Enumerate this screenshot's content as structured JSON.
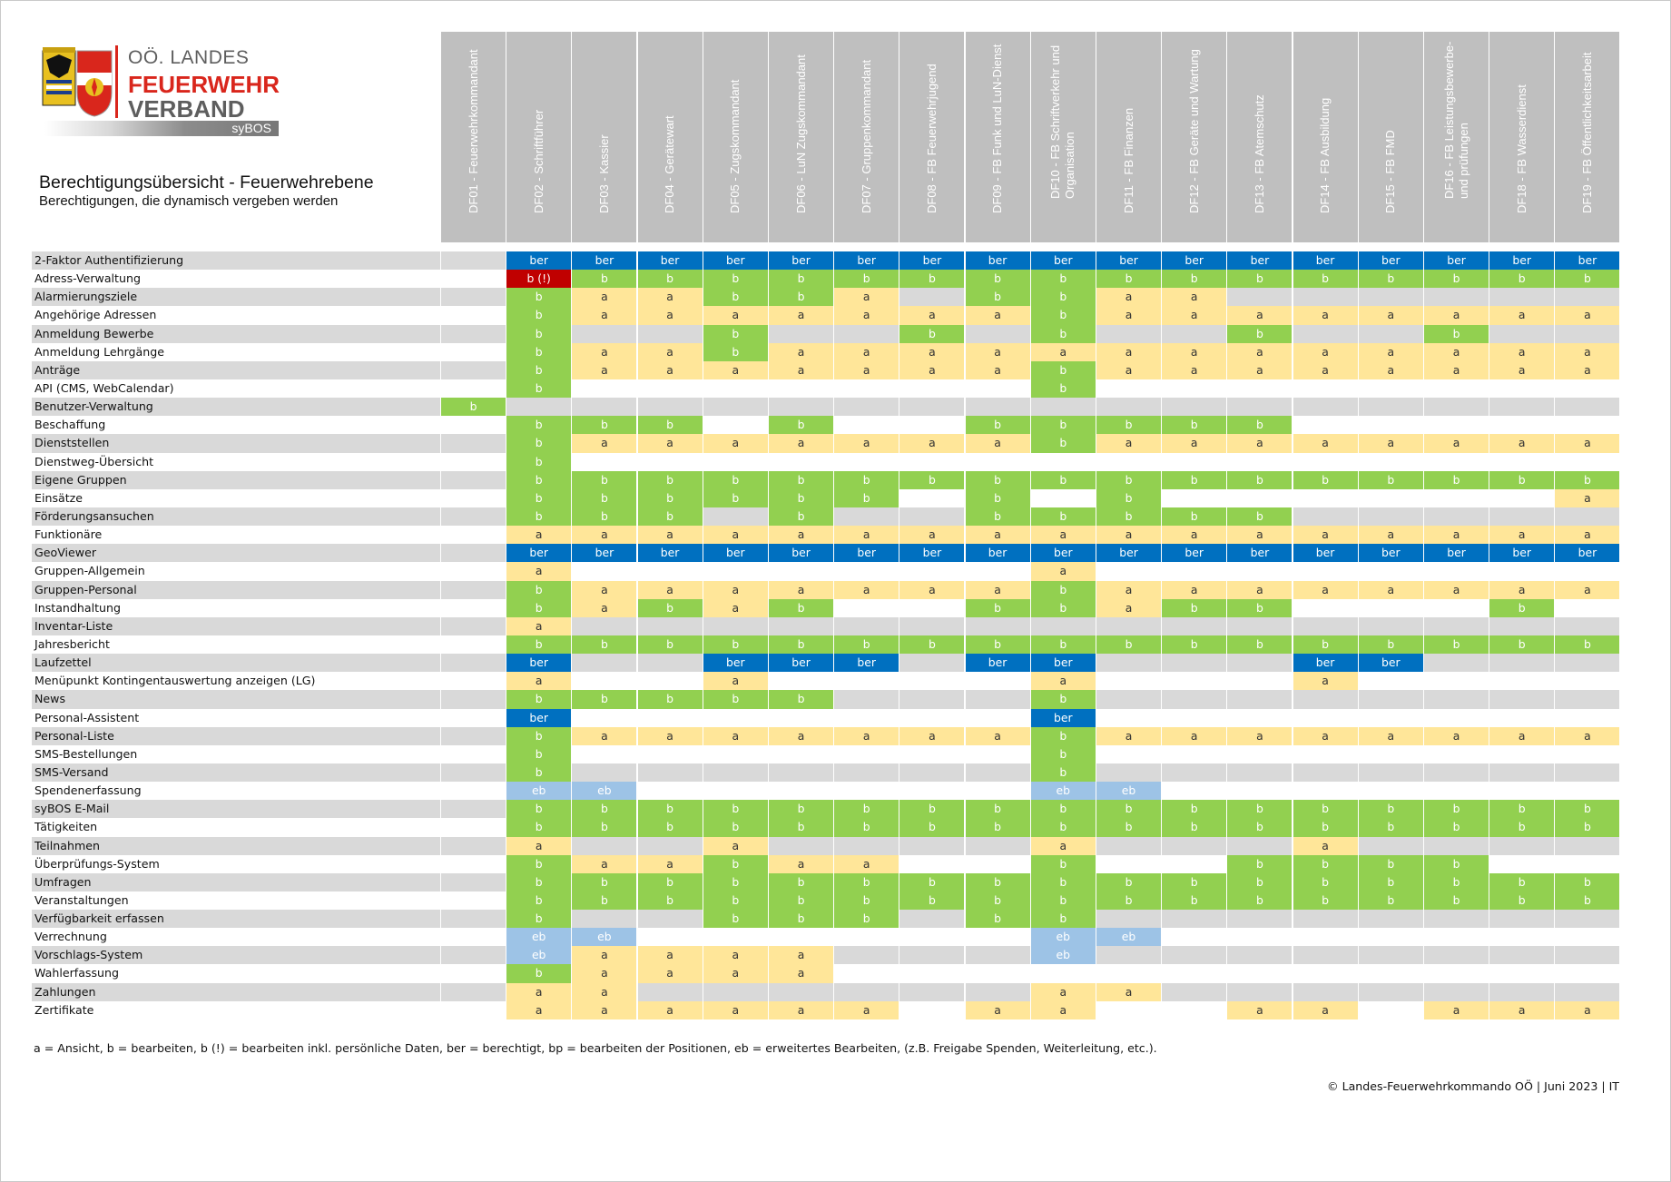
{
  "logo": {
    "line1": "OÖ. LANDES",
    "line2": "FEUERWEHR",
    "line3": "VERBAND",
    "badge": "syBOS",
    "colors": {
      "red": "#d9261c",
      "gray": "#5e5e5e"
    }
  },
  "title": "Berechtigungsübersicht - Feuerwehrebene",
  "subtitle": "Berechtigungen, die dynamisch vergeben werden",
  "columns": [
    "DF01 - Feuerwehrkommandant",
    "DF02 - Schriftführer",
    "DF03 - Kassier",
    "DF04 - Gerätewart",
    "DF05 - Zugskommandant",
    "DF06 - LuN Zugskommandant",
    "DF07 - Gruppenkommandant",
    "DF08 - FB Feuerwehrjugend",
    "DF09 - FB Funk und LuN-Dienst",
    "DF10 - FB Schriftverkehr und Organisation",
    "DF11 - FB Finanzen",
    "DF12 - FB Geräte und Wartung",
    "DF13 - FB Atemschutz",
    "DF14 - FB Ausbildung",
    "DF15 - FB FMD",
    "DF16 - FB Leistungsbewerbe- und prüfungen",
    "DF18 - FB Wasserdienst",
    "DF19 - FB Öffentlichkeitsarbeit"
  ],
  "cell_colors": {
    "ber": "#0070c0",
    "b": "#92d050",
    "a": "#ffe699",
    "eb": "#9dc3e6",
    "b (!)": "#c00000",
    "shade": "#d9d9d9"
  },
  "rows": [
    {
      "label": "2-Faktor Authentifizierung",
      "cells": [
        "",
        "ber",
        "ber",
        "ber",
        "ber",
        "ber",
        "ber",
        "ber",
        "ber",
        "ber",
        "ber",
        "ber",
        "ber",
        "ber",
        "ber",
        "ber",
        "ber",
        "ber"
      ]
    },
    {
      "label": "Adress-Verwaltung",
      "cells": [
        "",
        "b (!)",
        "b",
        "b",
        "b",
        "b",
        "b",
        "b",
        "b",
        "b",
        "b",
        "b",
        "b",
        "b",
        "b",
        "b",
        "b",
        "b"
      ]
    },
    {
      "label": "Alarmierungsziele",
      "cells": [
        "",
        "b",
        "a",
        "a",
        "b",
        "b",
        "a",
        "",
        "b",
        "b",
        "a",
        "a",
        "",
        "",
        "",
        "",
        "",
        ""
      ]
    },
    {
      "label": "Angehörige Adressen",
      "cells": [
        "",
        "b",
        "a",
        "a",
        "a",
        "a",
        "a",
        "a",
        "a",
        "b",
        "a",
        "a",
        "a",
        "a",
        "a",
        "a",
        "a",
        "a"
      ]
    },
    {
      "label": "Anmeldung Bewerbe",
      "cells": [
        "",
        "b",
        "",
        "",
        "b",
        "",
        "",
        "b",
        "",
        "b",
        "",
        "",
        "b",
        "",
        "",
        "b",
        "",
        ""
      ]
    },
    {
      "label": "Anmeldung Lehrgänge",
      "cells": [
        "",
        "b",
        "a",
        "a",
        "b",
        "a",
        "a",
        "a",
        "a",
        "a",
        "a",
        "a",
        "a",
        "a",
        "a",
        "a",
        "a",
        "a"
      ]
    },
    {
      "label": "Anträge",
      "cells": [
        "",
        "b",
        "a",
        "a",
        "a",
        "a",
        "a",
        "a",
        "a",
        "b",
        "a",
        "a",
        "a",
        "a",
        "a",
        "a",
        "a",
        "a"
      ]
    },
    {
      "label": "API (CMS, WebCalendar)",
      "cells": [
        "",
        "b",
        "",
        "",
        "",
        "",
        "",
        "",
        "",
        "b",
        "",
        "",
        "",
        "",
        "",
        "",
        "",
        ""
      ]
    },
    {
      "label": "Benutzer-Verwaltung",
      "cells": [
        "b",
        "",
        "",
        "",
        "",
        "",
        "",
        "",
        "",
        "",
        "",
        "",
        "",
        "",
        "",
        "",
        "",
        ""
      ]
    },
    {
      "label": "Beschaffung",
      "cells": [
        "",
        "b",
        "b",
        "b",
        "",
        "b",
        "",
        "",
        "b",
        "b",
        "b",
        "b",
        "b",
        "",
        "",
        "",
        "",
        ""
      ]
    },
    {
      "label": "Dienststellen",
      "cells": [
        "",
        "b",
        "a",
        "a",
        "a",
        "a",
        "a",
        "a",
        "a",
        "b",
        "a",
        "a",
        "a",
        "a",
        "a",
        "a",
        "a",
        "a"
      ]
    },
    {
      "label": "Dienstweg-Übersicht",
      "cells": [
        "",
        "b",
        "",
        "",
        "",
        "",
        "",
        "",
        "",
        "",
        "",
        "",
        "",
        "",
        "",
        "",
        "",
        ""
      ]
    },
    {
      "label": "Eigene Gruppen",
      "cells": [
        "",
        "b",
        "b",
        "b",
        "b",
        "b",
        "b",
        "b",
        "b",
        "b",
        "b",
        "b",
        "b",
        "b",
        "b",
        "b",
        "b",
        "b"
      ]
    },
    {
      "label": "Einsätze",
      "cells": [
        "",
        "b",
        "b",
        "b",
        "b",
        "b",
        "b",
        "",
        "b",
        "",
        "b",
        "",
        "",
        "",
        "",
        "",
        "",
        "a"
      ]
    },
    {
      "label": "Förderungsansuchen",
      "cells": [
        "",
        "b",
        "b",
        "b",
        "",
        "b",
        "",
        "",
        "b",
        "b",
        "b",
        "b",
        "b",
        "",
        "",
        "",
        "",
        ""
      ]
    },
    {
      "label": "Funktionäre",
      "cells": [
        "",
        "a",
        "a",
        "a",
        "a",
        "a",
        "a",
        "a",
        "a",
        "a",
        "a",
        "a",
        "a",
        "a",
        "a",
        "a",
        "a",
        "a"
      ]
    },
    {
      "label": "GeoViewer",
      "cells": [
        "",
        "ber",
        "ber",
        "ber",
        "ber",
        "ber",
        "ber",
        "ber",
        "ber",
        "ber",
        "ber",
        "ber",
        "ber",
        "ber",
        "ber",
        "ber",
        "ber",
        "ber"
      ]
    },
    {
      "label": "Gruppen-Allgemein",
      "cells": [
        "",
        "a",
        "",
        "",
        "",
        "",
        "",
        "",
        "",
        "a",
        "",
        "",
        "",
        "",
        "",
        "",
        "",
        ""
      ]
    },
    {
      "label": "Gruppen-Personal",
      "cells": [
        "",
        "b",
        "a",
        "a",
        "a",
        "a",
        "a",
        "a",
        "a",
        "b",
        "a",
        "a",
        "a",
        "a",
        "a",
        "a",
        "a",
        "a"
      ]
    },
    {
      "label": "Instandhaltung",
      "cells": [
        "",
        "b",
        "a",
        "b",
        "a",
        "b",
        "",
        "",
        "b",
        "b",
        "a",
        "b",
        "b",
        "",
        "",
        "",
        "b",
        ""
      ]
    },
    {
      "label": "Inventar-Liste",
      "cells": [
        "",
        "a",
        "",
        "",
        "",
        "",
        "",
        "",
        "",
        "",
        "",
        "",
        "",
        "",
        "",
        "",
        "",
        ""
      ]
    },
    {
      "label": "Jahresbericht",
      "cells": [
        "",
        "b",
        "b",
        "b",
        "b",
        "b",
        "b",
        "b",
        "b",
        "b",
        "b",
        "b",
        "b",
        "b",
        "b",
        "b",
        "b",
        "b"
      ]
    },
    {
      "label": "Laufzettel",
      "cells": [
        "",
        "ber",
        "",
        "",
        "ber",
        "ber",
        "ber",
        "",
        "ber",
        "ber",
        "",
        "",
        "",
        "ber",
        "ber",
        "",
        "",
        ""
      ]
    },
    {
      "label": "Menüpunkt Kontingentauswertung anzeigen (LG)",
      "cells": [
        "",
        "a",
        "",
        "",
        "a",
        "",
        "",
        "",
        "",
        "a",
        "",
        "",
        "",
        "a",
        "",
        "",
        "",
        ""
      ]
    },
    {
      "label": "News",
      "cells": [
        "",
        "b",
        "b",
        "b",
        "b",
        "b",
        "",
        "",
        "",
        "b",
        "",
        "",
        "",
        "",
        "",
        "",
        "",
        ""
      ]
    },
    {
      "label": "Personal-Assistent",
      "cells": [
        "",
        "ber",
        "",
        "",
        "",
        "",
        "",
        "",
        "",
        "ber",
        "",
        "",
        "",
        "",
        "",
        "",
        "",
        ""
      ]
    },
    {
      "label": "Personal-Liste",
      "cells": [
        "",
        "b",
        "a",
        "a",
        "a",
        "a",
        "a",
        "a",
        "a",
        "b",
        "a",
        "a",
        "a",
        "a",
        "a",
        "a",
        "a",
        "a"
      ]
    },
    {
      "label": "SMS-Bestellungen",
      "cells": [
        "",
        "b",
        "",
        "",
        "",
        "",
        "",
        "",
        "",
        "b",
        "",
        "",
        "",
        "",
        "",
        "",
        "",
        ""
      ]
    },
    {
      "label": "SMS-Versand",
      "cells": [
        "",
        "b",
        "",
        "",
        "",
        "",
        "",
        "",
        "",
        "b",
        "",
        "",
        "",
        "",
        "",
        "",
        "",
        ""
      ]
    },
    {
      "label": "Spendenerfassung",
      "cells": [
        "",
        "eb",
        "eb",
        "",
        "",
        "",
        "",
        "",
        "",
        "eb",
        "eb",
        "",
        "",
        "",
        "",
        "",
        "",
        ""
      ]
    },
    {
      "label": "syBOS E-Mail",
      "cells": [
        "",
        "b",
        "b",
        "b",
        "b",
        "b",
        "b",
        "b",
        "b",
        "b",
        "b",
        "b",
        "b",
        "b",
        "b",
        "b",
        "b",
        "b"
      ]
    },
    {
      "label": "Tätigkeiten",
      "cells": [
        "",
        "b",
        "b",
        "b",
        "b",
        "b",
        "b",
        "b",
        "b",
        "b",
        "b",
        "b",
        "b",
        "b",
        "b",
        "b",
        "b",
        "b"
      ]
    },
    {
      "label": "Teilnahmen",
      "cells": [
        "",
        "a",
        "",
        "",
        "a",
        "",
        "",
        "",
        "",
        "a",
        "",
        "",
        "",
        "a",
        "",
        "",
        "",
        ""
      ]
    },
    {
      "label": "Überprüfungs-System",
      "cells": [
        "",
        "b",
        "a",
        "a",
        "b",
        "a",
        "a",
        "",
        "",
        "b",
        "",
        "",
        "b",
        "b",
        "b",
        "b",
        "",
        ""
      ]
    },
    {
      "label": "Umfragen",
      "cells": [
        "",
        "b",
        "b",
        "b",
        "b",
        "b",
        "b",
        "b",
        "b",
        "b",
        "b",
        "b",
        "b",
        "b",
        "b",
        "b",
        "b",
        "b"
      ]
    },
    {
      "label": "Veranstaltungen",
      "cells": [
        "",
        "b",
        "b",
        "b",
        "b",
        "b",
        "b",
        "b",
        "b",
        "b",
        "b",
        "b",
        "b",
        "b",
        "b",
        "b",
        "b",
        "b"
      ]
    },
    {
      "label": "Verfügbarkeit erfassen",
      "cells": [
        "",
        "b",
        "",
        "",
        "b",
        "b",
        "b",
        "",
        "b",
        "b",
        "",
        "",
        "",
        "",
        "",
        "",
        "",
        ""
      ]
    },
    {
      "label": "Verrechnung",
      "cells": [
        "",
        "eb",
        "eb",
        "",
        "",
        "",
        "",
        "",
        "",
        "eb",
        "eb",
        "",
        "",
        "",
        "",
        "",
        "",
        ""
      ]
    },
    {
      "label": "Vorschlags-System",
      "cells": [
        "",
        "eb",
        "a",
        "a",
        "a",
        "a",
        "",
        "",
        "",
        "eb",
        "",
        "",
        "",
        "",
        "",
        "",
        "",
        ""
      ]
    },
    {
      "label": "Wahlerfassung",
      "cells": [
        "",
        "b",
        "a",
        "a",
        "a",
        "a",
        "",
        "",
        "",
        "",
        "",
        "",
        "",
        "",
        "",
        "",
        "",
        ""
      ]
    },
    {
      "label": "Zahlungen",
      "cells": [
        "",
        "a",
        "a",
        "",
        "",
        "",
        "",
        "",
        "",
        "a",
        "a",
        "",
        "",
        "",
        "",
        "",
        "",
        ""
      ]
    },
    {
      "label": "Zertifikate",
      "cells": [
        "",
        "a",
        "a",
        "a",
        "a",
        "a",
        "a",
        "",
        "a",
        "a",
        "",
        "",
        "a",
        "a",
        "",
        "a",
        "a",
        "a"
      ]
    }
  ],
  "legend": "a = Ansicht, b = bearbeiten, b (!) = bearbeiten inkl. persönliche Daten, ber = berechtigt, bp = bearbeiten der Positionen, eb = erweitertes Bearbeiten, (z.B. Freigabe Spenden, Weiterleitung, etc.).",
  "footer": "© Landes-Feuerwehrkommando OÖ | Juni 2023 | IT"
}
